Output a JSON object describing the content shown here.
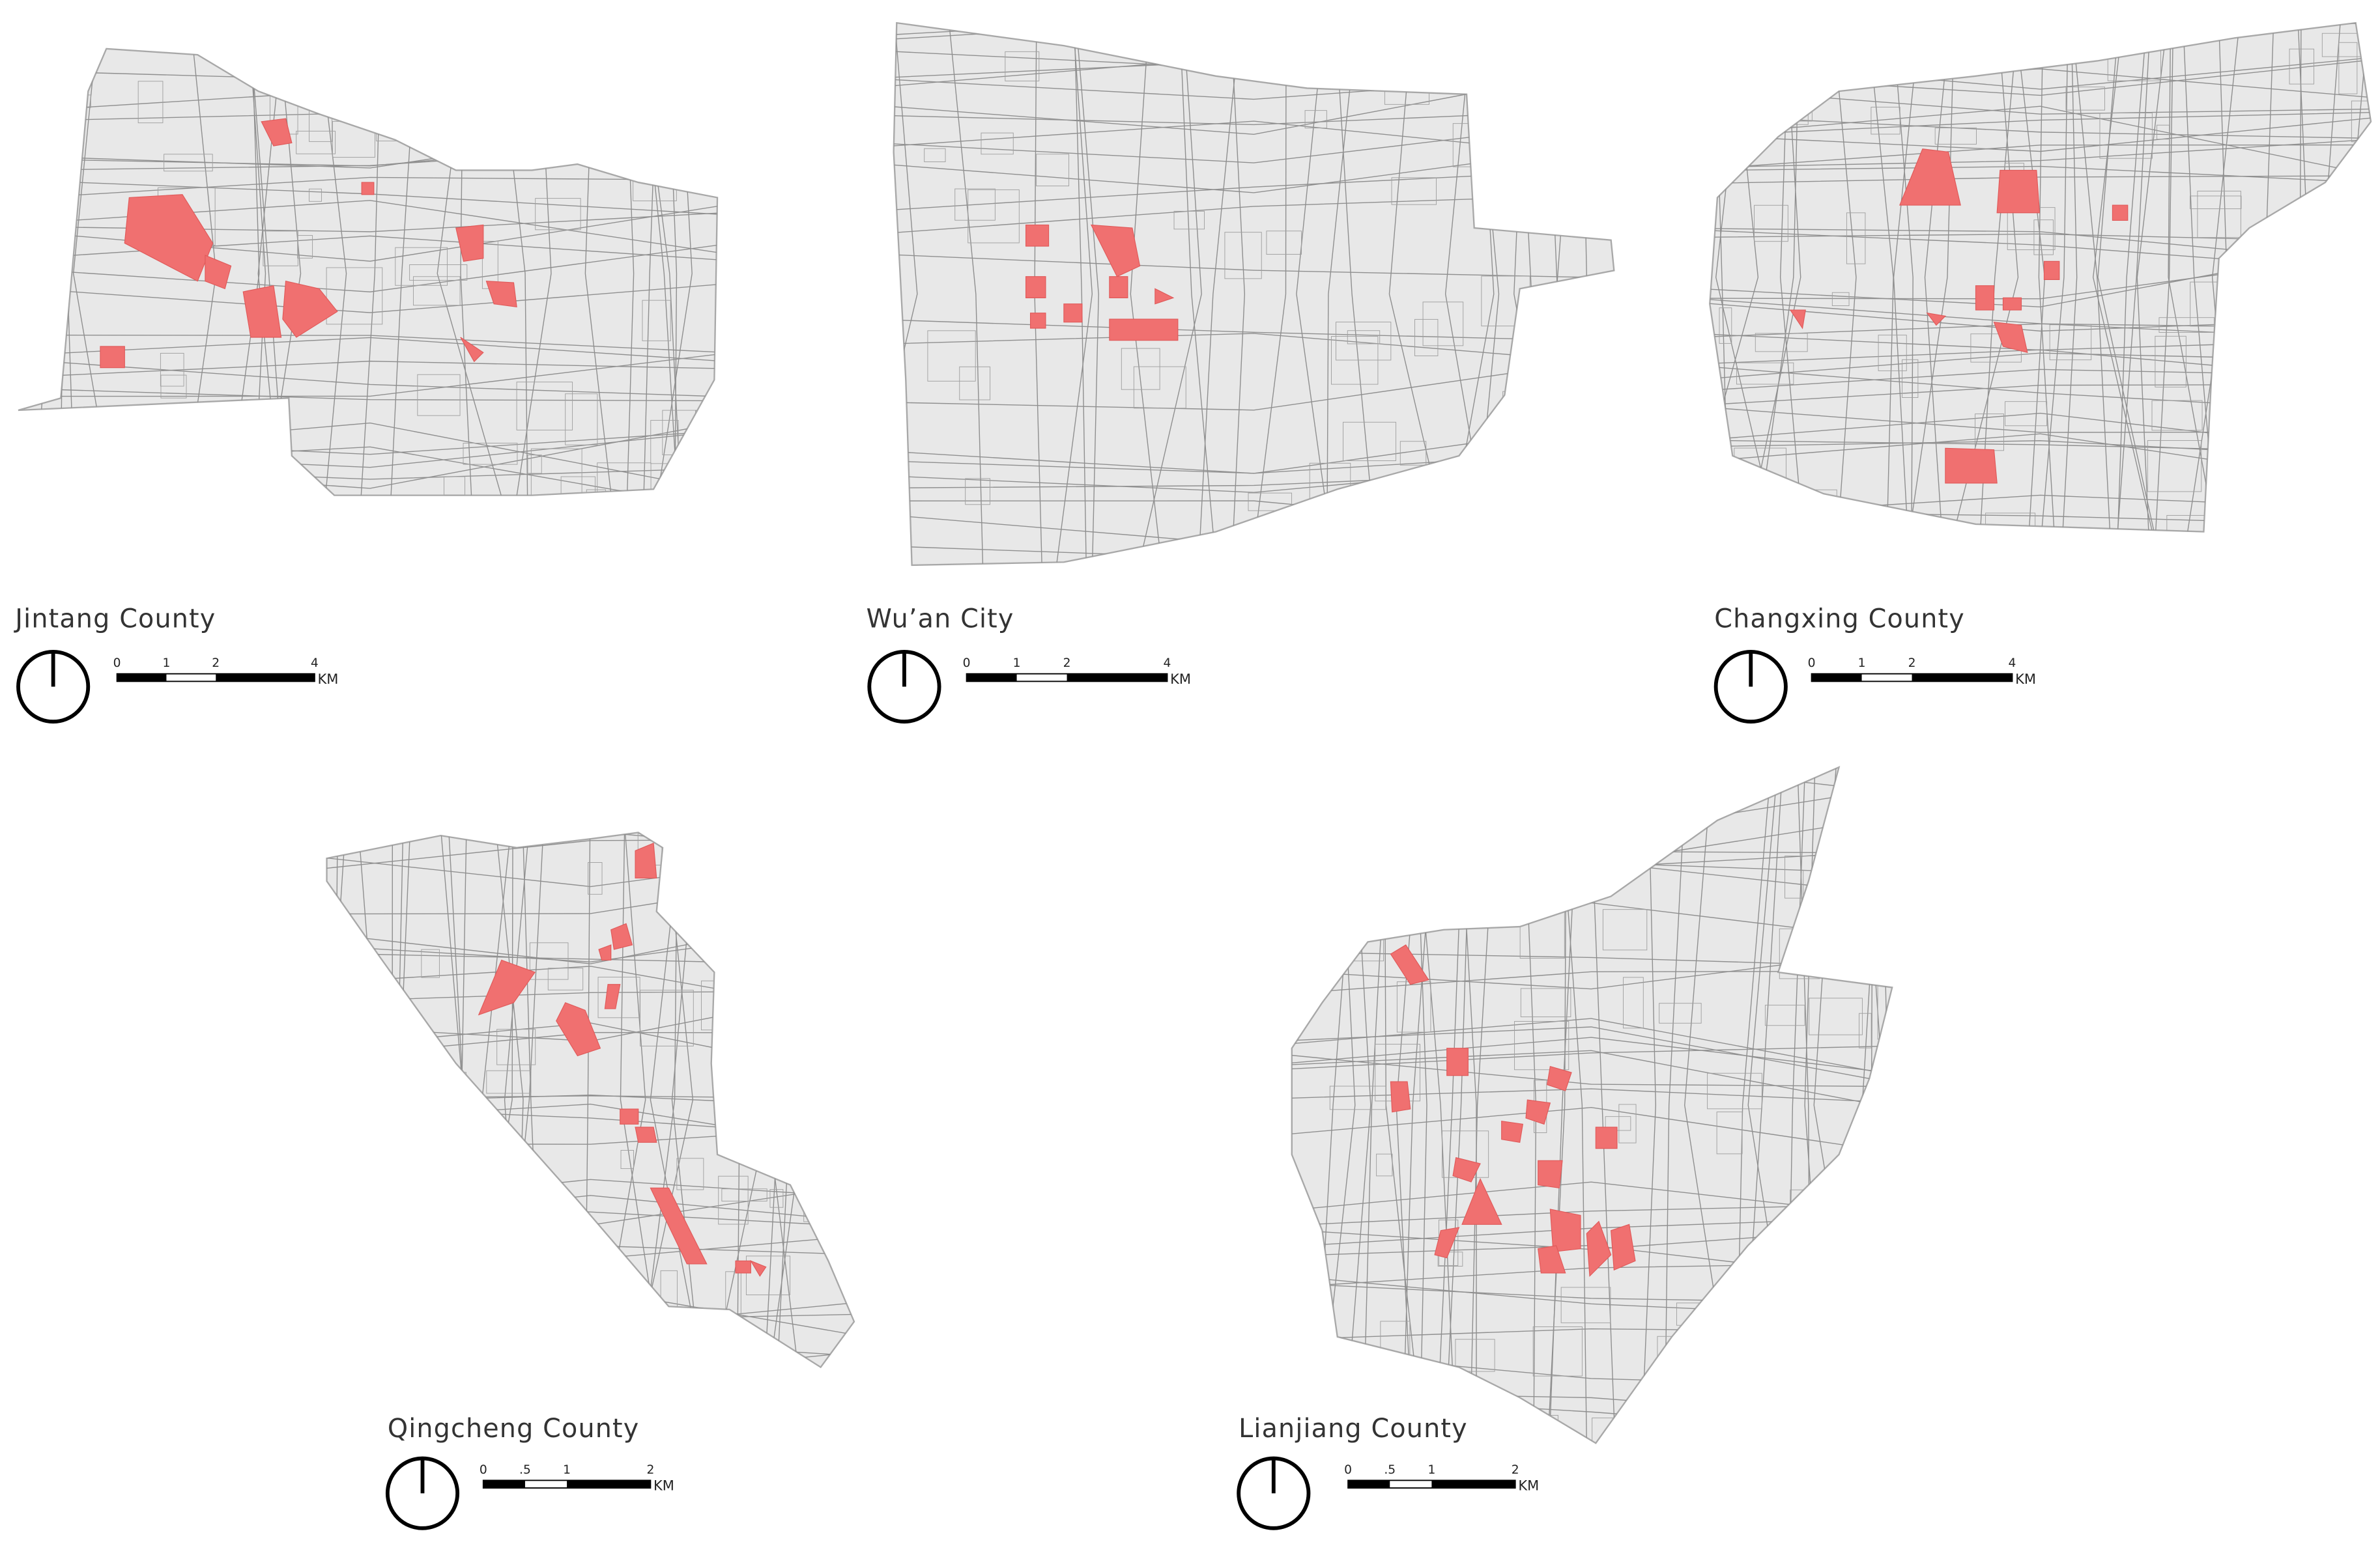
{
  "maps": [
    {
      "name": "Jintang County",
      "scale": {
        "ticks": [
          "0",
          "1",
          "2",
          "4"
        ],
        "unit": "KM"
      }
    },
    {
      "name": "Wu’an City",
      "scale": {
        "ticks": [
          "0",
          "1",
          "2",
          "4"
        ],
        "unit": "KM"
      }
    },
    {
      "name": "Changxing County",
      "scale": {
        "ticks": [
          "0",
          "1",
          "2",
          "4"
        ],
        "unit": "KM"
      }
    },
    {
      "name": "Qingcheng County",
      "scale": {
        "ticks": [
          "0",
          ".5",
          "1",
          "2"
        ],
        "unit": "KM"
      }
    },
    {
      "name": "Lianjiang County",
      "scale": {
        "ticks": [
          "0",
          ".5",
          "1",
          "2"
        ],
        "unit": "KM"
      }
    }
  ]
}
